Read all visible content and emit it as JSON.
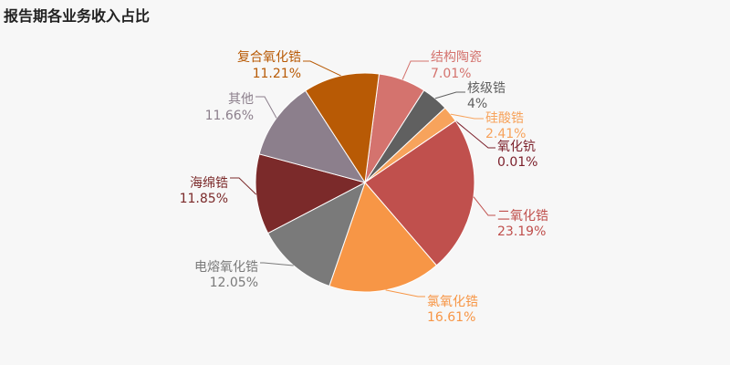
{
  "chart_data": {
    "type": "pie",
    "title": "报告期各业务收入占比",
    "slices": [
      {
        "name": "结构陶瓷",
        "value": 7.01,
        "value_label": "7.01%",
        "color": "#d4736e"
      },
      {
        "name": "核级锆",
        "value": 4.0,
        "value_label": "4%",
        "color": "#606060"
      },
      {
        "name": "硅酸锆",
        "value": 2.41,
        "value_label": "2.41%",
        "color": "#f7a35c"
      },
      {
        "name": "氧化钪",
        "value": 0.01,
        "value_label": "0.01%",
        "color": "#7b1f2a"
      },
      {
        "name": "二氧化锆",
        "value": 23.19,
        "value_label": "23.19%",
        "color": "#c0504d"
      },
      {
        "name": "氯氧化锆",
        "value": 16.61,
        "value_label": "16.61%",
        "color": "#f79646"
      },
      {
        "name": "电熔氧化锆",
        "value": 12.05,
        "value_label": "12.05%",
        "color": "#7a7a7a"
      },
      {
        "name": "海绵锆",
        "value": 11.85,
        "value_label": "11.85%",
        "color": "#7b2a2a"
      },
      {
        "name": "其他",
        "value": 11.66,
        "value_label": "11.66%",
        "color": "#8c7f8c"
      },
      {
        "name": "复合氧化锆",
        "value": 11.21,
        "value_label": "11.21%",
        "color": "#b85a05"
      }
    ],
    "start_angle_deg": 7.4,
    "direction": "clockwise",
    "legend": "none"
  }
}
